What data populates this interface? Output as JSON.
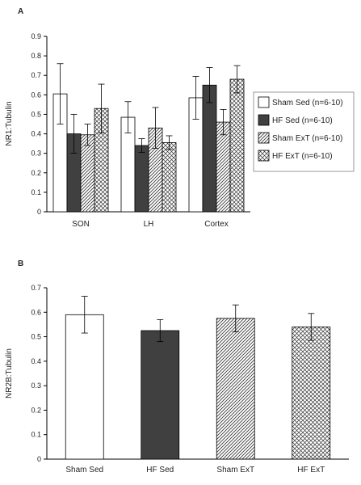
{
  "series_styles": {
    "Sham Sed": {
      "fill": "#ffffff",
      "pattern": "none"
    },
    "HF Sed": {
      "fill": "#404040",
      "pattern": "none"
    },
    "Sham ExT": {
      "fill": "#ffffff",
      "pattern": "diagonal-hatch"
    },
    "HF ExT": {
      "fill": "#ffffff",
      "pattern": "crosshatch"
    }
  },
  "chart_data": [
    {
      "panel_label": "A",
      "type": "bar",
      "ylabel": "NR1:Tubulin",
      "ylim": [
        0,
        0.9
      ],
      "yticks": [
        "0",
        "0.1",
        "0.2",
        "0.3",
        "0.4",
        "0.5",
        "0.6",
        "0.7",
        "0.8",
        "0.9"
      ],
      "categories": [
        "SON",
        "LH",
        "Cortex"
      ],
      "series": [
        {
          "name": "Sham Sed (n=6-10)",
          "style": "Sham Sed",
          "values": [
            0.605,
            0.485,
            0.585
          ],
          "errors": [
            0.155,
            0.08,
            0.11
          ]
        },
        {
          "name": "HF Sed (n=6-10)",
          "style": "HF Sed",
          "values": [
            0.4,
            0.34,
            0.65
          ],
          "errors": [
            0.1,
            0.035,
            0.09
          ]
        },
        {
          "name": "Sham ExT (n=6-10)",
          "style": "Sham ExT",
          "values": [
            0.395,
            0.43,
            0.46
          ],
          "errors": [
            0.055,
            0.105,
            0.065
          ]
        },
        {
          "name": "HF ExT (n=6-10)",
          "style": "HF ExT",
          "values": [
            0.53,
            0.355,
            0.68
          ],
          "errors": [
            0.125,
            0.035,
            0.07
          ]
        }
      ],
      "legend": [
        "Sham Sed (n=6-10)",
        "HF Sed (n=6-10)",
        "Sham ExT (n=6-10)",
        "HF ExT (n=6-10)"
      ],
      "legend_position": "right"
    },
    {
      "panel_label": "B",
      "type": "bar",
      "ylabel": "NR2B:Tubulin",
      "ylim": [
        0,
        0.7
      ],
      "yticks": [
        "0",
        "0.1",
        "0.2",
        "0.3",
        "0.4",
        "0.5",
        "0.6",
        "0.7"
      ],
      "categories": [
        "Sham Sed",
        "HF Sed",
        "Sham ExT",
        "HF ExT"
      ],
      "values": [
        0.59,
        0.525,
        0.575,
        0.54
      ],
      "errors": [
        0.075,
        0.045,
        0.055,
        0.055
      ],
      "bar_styles": [
        "Sham Sed",
        "HF Sed",
        "Sham ExT",
        "HF ExT"
      ]
    }
  ]
}
